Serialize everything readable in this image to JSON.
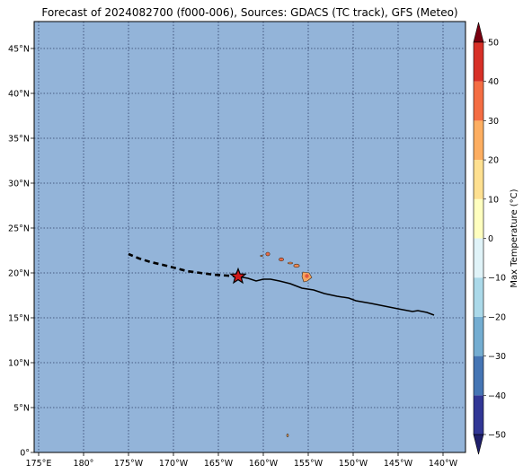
{
  "title": "Forecast of 2024082700 (f000-006), Sources: GDACS (TC track), GFS (Meteo)",
  "map": {
    "lon_range": [
      174.5,
      222.5
    ],
    "lat_range": [
      0,
      48
    ],
    "ocean_color": "#93b4d9",
    "grid_lons": [
      175,
      180,
      185,
      190,
      195,
      200,
      205,
      210,
      215,
      220
    ],
    "grid_lats": [
      0,
      5,
      10,
      15,
      20,
      25,
      30,
      35,
      40,
      45
    ],
    "lon_ticks": [
      {
        "lon": 175,
        "label": "175°E"
      },
      {
        "lon": 180,
        "label": "180°"
      },
      {
        "lon": 185,
        "label": "175°W"
      },
      {
        "lon": 190,
        "label": "170°W"
      },
      {
        "lon": 195,
        "label": "165°W"
      },
      {
        "lon": 200,
        "label": "160°W"
      },
      {
        "lon": 205,
        "label": "155°W"
      },
      {
        "lon": 210,
        "label": "150°W"
      },
      {
        "lon": 215,
        "label": "145°W"
      },
      {
        "lon": 220,
        "label": "140°W"
      }
    ],
    "lat_ticks": [
      {
        "lat": 0,
        "label": "0°"
      },
      {
        "lat": 5,
        "label": "5°N"
      },
      {
        "lat": 10,
        "label": "10°N"
      },
      {
        "lat": 15,
        "label": "15°N"
      },
      {
        "lat": 20,
        "label": "20°N"
      },
      {
        "lat": 25,
        "label": "25°N"
      },
      {
        "lat": 30,
        "label": "30°N"
      },
      {
        "lat": 35,
        "label": "35°N"
      },
      {
        "lat": 40,
        "label": "40°N"
      },
      {
        "lat": 45,
        "label": "45°N"
      }
    ]
  },
  "track": {
    "past": [
      [
        219.0,
        15.3
      ],
      [
        218.2,
        15.6
      ],
      [
        217.2,
        15.8
      ],
      [
        216.6,
        15.7
      ],
      [
        215.0,
        16.0
      ],
      [
        213.5,
        16.3
      ],
      [
        212.0,
        16.6
      ],
      [
        210.3,
        16.9
      ],
      [
        209.5,
        17.2
      ],
      [
        208.2,
        17.4
      ],
      [
        206.8,
        17.7
      ],
      [
        205.6,
        18.1
      ],
      [
        204.3,
        18.3
      ],
      [
        203.0,
        18.8
      ],
      [
        201.8,
        19.1
      ],
      [
        200.8,
        19.3
      ],
      [
        200.0,
        19.3
      ],
      [
        199.2,
        19.1
      ],
      [
        198.3,
        19.4
      ],
      [
        197.2,
        19.6
      ]
    ],
    "forecast": [
      [
        197.2,
        19.6
      ],
      [
        196.0,
        19.7
      ],
      [
        194.5,
        19.8
      ],
      [
        193.0,
        20.0
      ],
      [
        191.5,
        20.2
      ],
      [
        190.0,
        20.6
      ],
      [
        188.8,
        20.9
      ],
      [
        187.5,
        21.2
      ],
      [
        186.2,
        21.6
      ],
      [
        185.0,
        22.1
      ]
    ],
    "current_position": [
      197.2,
      19.6
    ],
    "line_color": "#000000",
    "marker_color": "#d0191a"
  },
  "islands": [
    {
      "name_key": "hawaii",
      "lon": 204.8,
      "lat": 19.6,
      "temp_fill": "#f4a460"
    },
    {
      "name_key": "maui",
      "lon": 203.7,
      "lat": 20.8,
      "temp_fill": "#f08a54"
    },
    {
      "name_key": "molokai",
      "lon": 203.0,
      "lat": 21.1,
      "temp_fill": "#f08a54"
    },
    {
      "name_key": "oahu",
      "lon": 202.0,
      "lat": 21.5,
      "temp_fill": "#e86a46"
    },
    {
      "name_key": "kauai",
      "lon": 200.5,
      "lat": 22.1,
      "temp_fill": "#e86a46"
    },
    {
      "name_key": "niihau",
      "lon": 199.8,
      "lat": 21.9,
      "temp_fill": "#f4a460"
    },
    {
      "name_key": "small-atoll",
      "lon": 202.7,
      "lat": 1.9,
      "temp_fill": "#f4a460"
    }
  ],
  "colorbar": {
    "label": "Max Temperature (°C)",
    "levels": [
      -50,
      -40,
      -30,
      -20,
      -10,
      0,
      10,
      20,
      30,
      40,
      50
    ],
    "tick_labels": [
      "−50",
      "−40",
      "−30",
      "−20",
      "−10",
      "0",
      "10",
      "20",
      "30",
      "40",
      "50"
    ],
    "colors": [
      "#313695",
      "#4575b4",
      "#74add1",
      "#abd9e9",
      "#e0f3f8",
      "#ffffbf",
      "#fee090",
      "#fdae61",
      "#f46d43",
      "#d73027",
      "#a50026"
    ],
    "under_color": "#1f1f6b",
    "over_color": "#7a0010"
  }
}
